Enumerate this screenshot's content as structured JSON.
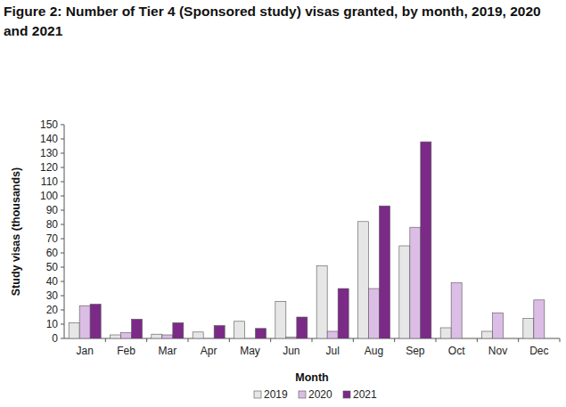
{
  "chart_data": {
    "type": "bar",
    "title": "Figure 2: Number of Tier 4 (Sponsored study) visas granted, by month, 2019, 2020 and 2021",
    "x_label": "Month",
    "y_label": "Study visas (thousands)",
    "categories": [
      "Jan",
      "Feb",
      "Mar",
      "Apr",
      "May",
      "Jun",
      "Jul",
      "Aug",
      "Sep",
      "Oct",
      "Nov",
      "Dec"
    ],
    "series": [
      {
        "name": "2019",
        "color": "#e6e6e6",
        "values": [
          11,
          2.5,
          3,
          4.5,
          12,
          26,
          51,
          82,
          65,
          7.5,
          5,
          14
        ]
      },
      {
        "name": "2020",
        "color": "#dcbde6",
        "values": [
          23,
          4,
          2.5,
          0,
          0,
          1,
          5,
          35,
          78,
          39,
          18,
          27
        ]
      },
      {
        "name": "2021",
        "color": "#7b2a88",
        "values": [
          24,
          13.5,
          11,
          9,
          7,
          15,
          35,
          93,
          138,
          null,
          null,
          null
        ]
      }
    ],
    "ylim": [
      0,
      150
    ],
    "yticks": [
      0,
      10,
      20,
      30,
      40,
      50,
      60,
      70,
      80,
      90,
      100,
      110,
      120,
      130,
      140,
      150
    ],
    "grid": false,
    "legend": "bottom"
  }
}
